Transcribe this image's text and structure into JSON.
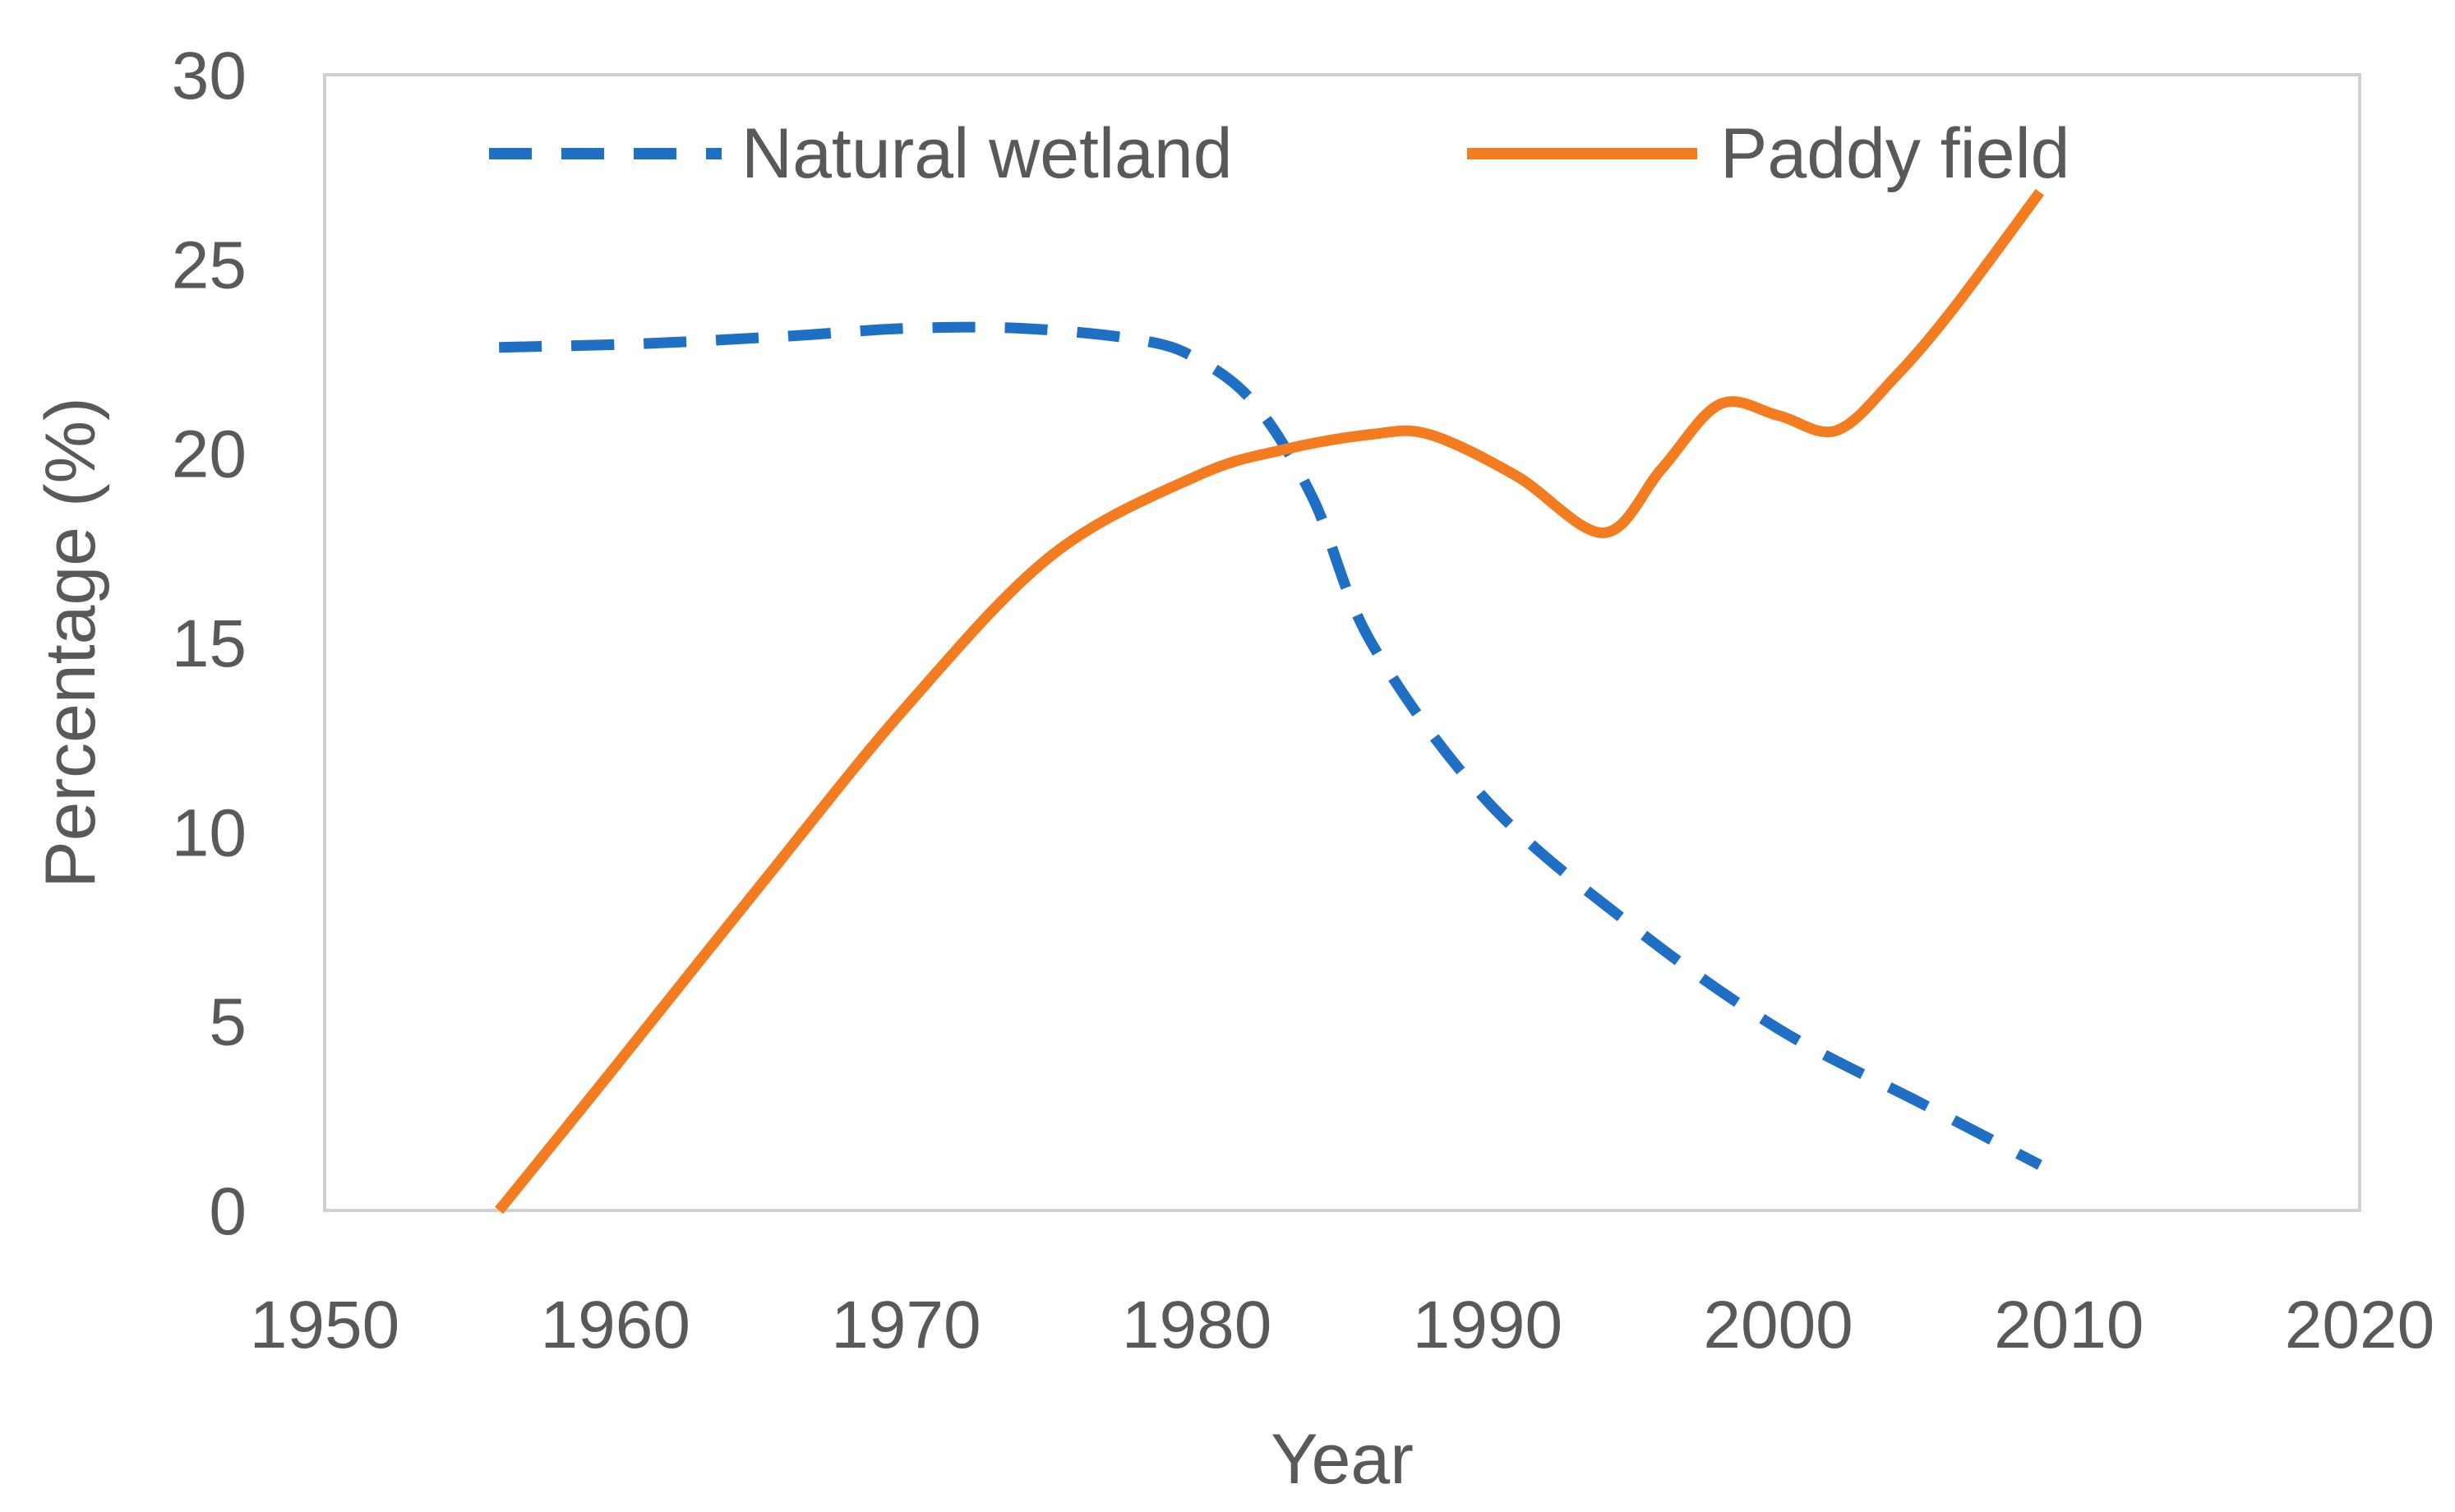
{
  "chart_data": {
    "type": "line",
    "title": "",
    "xlabel": "Year",
    "ylabel": "Percentage (%)",
    "xlim": [
      1950,
      2020
    ],
    "ylim": [
      0,
      30
    ],
    "xticks": [
      "1950",
      "1960",
      "1970",
      "1980",
      "1990",
      "2000",
      "2010",
      "2020"
    ],
    "yticks": [
      "0",
      "5",
      "10",
      "15",
      "20",
      "25",
      "30"
    ],
    "grid": false,
    "legend_position": "top",
    "series": [
      {
        "name": "Natural wetland",
        "style": "dashed",
        "color": "#1F6FC5",
        "x": [
          1956,
          1961,
          1966,
          1970,
          1974,
          1978,
          1980,
          1982,
          1984,
          1986,
          1990,
          1995,
          2000,
          2005,
          2009
        ],
        "values": [
          22.8,
          22.9,
          23.1,
          23.3,
          23.3,
          23.0,
          22.5,
          21.3,
          18.8,
          15.0,
          10.8,
          7.5,
          4.8,
          2.8,
          1.2
        ]
      },
      {
        "name": "Paddy field",
        "style": "solid",
        "color": "#F47C20",
        "x": [
          1956,
          1960,
          1965,
          1970,
          1975,
          1980,
          1983,
          1986,
          1988,
          1991,
          1994,
          1996,
          1998,
          2000,
          2002,
          2004,
          2006,
          2009
        ],
        "values": [
          0,
          3.8,
          8.6,
          13.3,
          17.3,
          19.4,
          20.1,
          20.5,
          20.5,
          19.4,
          17.9,
          19.6,
          21.3,
          21.0,
          20.6,
          22.0,
          23.8,
          26.9
        ]
      }
    ]
  }
}
